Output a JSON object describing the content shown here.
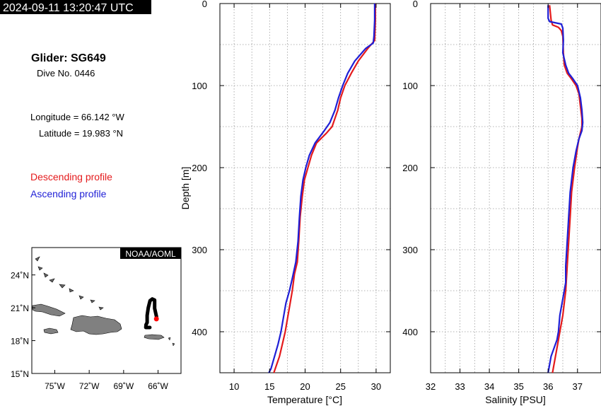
{
  "header": {
    "timestamp": "2024-09-11 13:20:47 UTC"
  },
  "glider": {
    "title": "Glider: SG649",
    "dive": "Dive No. 0446",
    "longitude": "Longitude = 66.142 °W",
    "latitude": "Latitude = 19.983 °N"
  },
  "legend": {
    "descending": {
      "label": "Descending profile",
      "color": "#e41a1c"
    },
    "ascending": {
      "label": "Ascending profile",
      "color": "#1f1fd6"
    }
  },
  "map": {
    "credit": "NOAA/AOML",
    "lat_ticks": [
      "24˚N",
      "21˚N",
      "18˚N",
      "15˚N"
    ],
    "lon_ticks": [
      "75˚W",
      "72˚W",
      "69˚W",
      "66˚W"
    ],
    "lat_range": [
      15,
      26.5
    ],
    "lon_range": [
      -77,
      -64
    ],
    "land_color": "#808080",
    "track_color": "#000000",
    "marker_color": "#ff0000",
    "track": [
      [
        -66.72,
        19.2
      ],
      [
        -67.07,
        19.2
      ],
      [
        -67.05,
        19.45
      ],
      [
        -66.95,
        19.65
      ],
      [
        -66.95,
        20.3
      ],
      [
        -66.85,
        21.0
      ],
      [
        -66.7,
        21.65
      ],
      [
        -66.5,
        21.8
      ],
      [
        -66.3,
        21.7
      ],
      [
        -66.3,
        20.95
      ],
      [
        -66.14,
        20.2
      ],
      [
        -66.14,
        19.98
      ]
    ],
    "marker": [
      -66.142,
      19.983
    ]
  },
  "chart_data": [
    {
      "type": "line",
      "xlabel": "Temperature [°C]",
      "ylabel": "Depth [m]",
      "xlim": [
        8,
        32
      ],
      "ylim": [
        450,
        0
      ],
      "x_ticks": [
        "10",
        "15",
        "20",
        "25",
        "30"
      ],
      "y_ticks": [
        "0",
        "100",
        "200",
        "300",
        "400"
      ],
      "grid": true,
      "series": [
        {
          "name": "Descending profile",
          "color": "#e41a1c",
          "points": [
            [
              29.9,
              0
            ],
            [
              29.9,
              20
            ],
            [
              29.8,
              45
            ],
            [
              28.8,
              55
            ],
            [
              27.5,
              70
            ],
            [
              26.5,
              85
            ],
            [
              25.6,
              100
            ],
            [
              25.0,
              115
            ],
            [
              24.6,
              130
            ],
            [
              23.8,
              150
            ],
            [
              23.0,
              158
            ],
            [
              21.6,
              170
            ],
            [
              20.9,
              185
            ],
            [
              20.4,
              200
            ],
            [
              19.9,
              215
            ],
            [
              19.6,
              235
            ],
            [
              19.3,
              260
            ],
            [
              19.1,
              290
            ],
            [
              18.9,
              315
            ],
            [
              18.5,
              330
            ],
            [
              18.2,
              350
            ],
            [
              17.9,
              365
            ],
            [
              17.5,
              385
            ],
            [
              17.2,
              400
            ],
            [
              16.8,
              415
            ],
            [
              16.4,
              430
            ],
            [
              16.0,
              440
            ],
            [
              15.6,
              450
            ]
          ]
        },
        {
          "name": "Ascending profile",
          "color": "#1f1fd6",
          "points": [
            [
              29.8,
              0
            ],
            [
              29.8,
              20
            ],
            [
              29.7,
              40
            ],
            [
              29.6,
              48
            ],
            [
              28.5,
              55
            ],
            [
              27.0,
              70
            ],
            [
              26.0,
              85
            ],
            [
              25.3,
              100
            ],
            [
              24.7,
              115
            ],
            [
              24.2,
              130
            ],
            [
              23.5,
              145
            ],
            [
              22.7,
              155
            ],
            [
              21.4,
              170
            ],
            [
              20.6,
              185
            ],
            [
              20.1,
              200
            ],
            [
              19.7,
              215
            ],
            [
              19.4,
              235
            ],
            [
              19.2,
              260
            ],
            [
              19.0,
              290
            ],
            [
              18.7,
              315
            ],
            [
              18.2,
              335
            ],
            [
              17.8,
              350
            ],
            [
              17.3,
              365
            ],
            [
              16.9,
              385
            ],
            [
              16.6,
              400
            ],
            [
              16.2,
              415
            ],
            [
              15.7,
              430
            ],
            [
              15.2,
              445
            ],
            [
              14.9,
              450
            ]
          ]
        }
      ]
    },
    {
      "type": "line",
      "xlabel": "Salinity [PSU]",
      "ylabel": "",
      "xlim": [
        32,
        37.8
      ],
      "ylim": [
        450,
        0
      ],
      "x_ticks": [
        "32",
        "33",
        "34",
        "35",
        "36",
        "37"
      ],
      "y_ticks": [
        "0",
        "100",
        "200",
        "300",
        "400"
      ],
      "grid": true,
      "series": [
        {
          "name": "Descending profile",
          "color": "#e41a1c",
          "points": [
            [
              36.05,
              2
            ],
            [
              36.1,
              20
            ],
            [
              36.15,
              26
            ],
            [
              36.35,
              29
            ],
            [
              36.45,
              33
            ],
            [
              36.5,
              40
            ],
            [
              36.52,
              60
            ],
            [
              36.55,
              75
            ],
            [
              36.65,
              85
            ],
            [
              36.8,
              92
            ],
            [
              36.95,
              100
            ],
            [
              37.05,
              110
            ],
            [
              37.1,
              125
            ],
            [
              37.15,
              140
            ],
            [
              37.15,
              150
            ],
            [
              37.05,
              165
            ],
            [
              37.0,
              175
            ],
            [
              36.9,
              200
            ],
            [
              36.8,
              230
            ],
            [
              36.75,
              260
            ],
            [
              36.7,
              290
            ],
            [
              36.65,
              320
            ],
            [
              36.6,
              350
            ],
            [
              36.5,
              380
            ],
            [
              36.4,
              400
            ],
            [
              36.35,
              410
            ],
            [
              36.25,
              430
            ],
            [
              36.15,
              450
            ]
          ]
        },
        {
          "name": "Ascending profile",
          "color": "#1f1fd6",
          "points": [
            [
              36.0,
              2
            ],
            [
              36.0,
              18
            ],
            [
              36.05,
              22
            ],
            [
              36.45,
              25
            ],
            [
              36.5,
              30
            ],
            [
              36.52,
              45
            ],
            [
              36.5,
              60
            ],
            [
              36.6,
              75
            ],
            [
              36.7,
              85
            ],
            [
              36.85,
              92
            ],
            [
              37.0,
              100
            ],
            [
              37.1,
              115
            ],
            [
              37.15,
              130
            ],
            [
              37.18,
              145
            ],
            [
              37.15,
              155
            ],
            [
              37.05,
              165
            ],
            [
              36.95,
              180
            ],
            [
              36.85,
              200
            ],
            [
              36.75,
              230
            ],
            [
              36.7,
              260
            ],
            [
              36.65,
              290
            ],
            [
              36.6,
              320
            ],
            [
              36.6,
              340
            ],
            [
              36.5,
              360
            ],
            [
              36.4,
              380
            ],
            [
              36.35,
              400
            ],
            [
              36.3,
              410
            ],
            [
              36.1,
              430
            ],
            [
              36.0,
              450
            ]
          ]
        }
      ]
    }
  ]
}
